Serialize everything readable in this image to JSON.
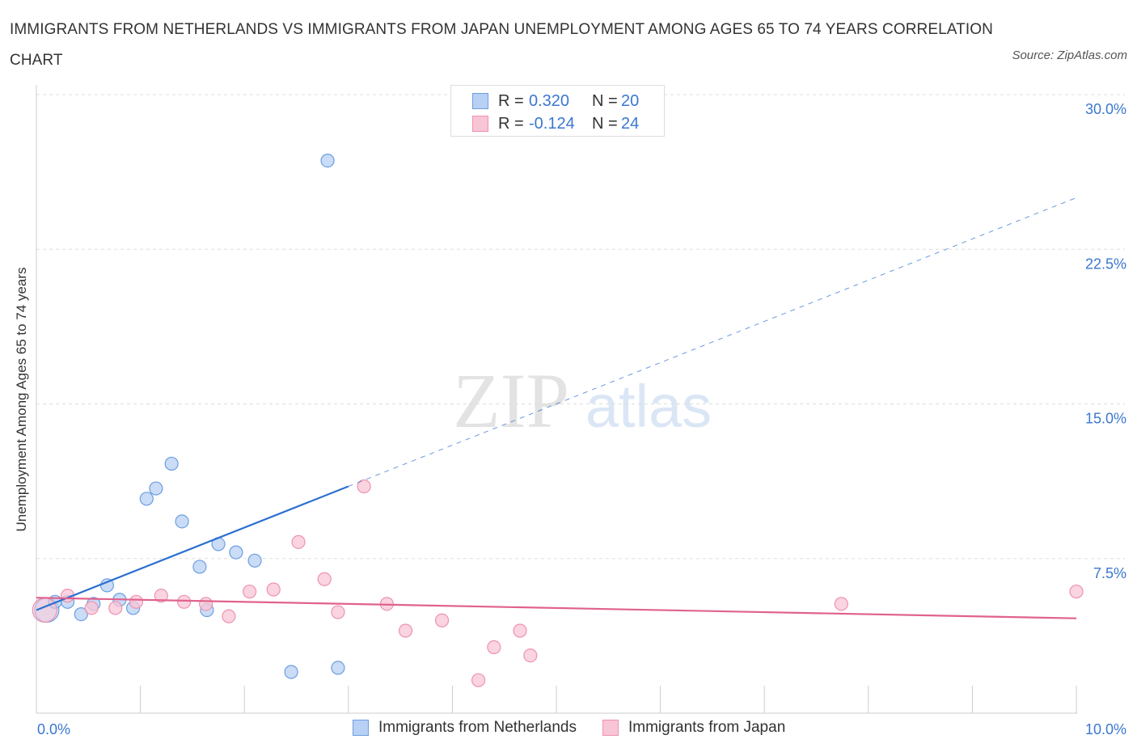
{
  "title": "IMMIGRANTS FROM NETHERLANDS VS IMMIGRANTS FROM JAPAN UNEMPLOYMENT AMONG AGES 65 TO 74 YEARS CORRELATION CHART",
  "source": "Source: ZipAtlas.com",
  "watermark": {
    "zip": "ZIP",
    "atlas": "atlas"
  },
  "legend": {
    "rows": [
      {
        "r_label": "R =",
        "r_value": "0.320",
        "n_label": "N =",
        "n_value": "20"
      },
      {
        "r_label": "R =",
        "r_value": "-0.124",
        "n_label": "N =",
        "n_value": "24"
      }
    ]
  },
  "colors": {
    "netherlands_fill": "#b8d0f3",
    "netherlands_stroke": "#6b9ee0",
    "netherlands_line": "#2a6fd0",
    "japan_fill": "#f8c5d5",
    "japan_stroke": "#ee92b0",
    "japan_line": "#e0628d",
    "tick_label": "#3a78d0",
    "grid": "#dddddd"
  },
  "chart_data": {
    "type": "scatter",
    "title": "IMMIGRANTS FROM NETHERLANDS VS IMMIGRANTS FROM JAPAN UNEMPLOYMENT AMONG AGES 65 TO 74 YEARS CORRELATION CHART",
    "xlabel": "",
    "ylabel": "Unemployment Among Ages 65 to 74 years",
    "xlim": [
      0,
      10
    ],
    "ylim": [
      0,
      30
    ],
    "x_tick_labels": [
      "0.0%",
      "10.0%"
    ],
    "y_ticks": [
      7.5,
      15,
      22.5,
      30
    ],
    "y_tick_labels": [
      "7.5%",
      "15.0%",
      "22.5%",
      "30.0%"
    ],
    "grid": true,
    "legend_position": "top-center",
    "series": [
      {
        "name": "Immigrants from Netherlands",
        "points": [
          {
            "x": 0.1,
            "y": 5.0,
            "big": true
          },
          {
            "x": 0.18,
            "y": 5.4
          },
          {
            "x": 0.3,
            "y": 5.4
          },
          {
            "x": 0.43,
            "y": 4.8
          },
          {
            "x": 0.55,
            "y": 5.3
          },
          {
            "x": 0.68,
            "y": 6.2
          },
          {
            "x": 0.8,
            "y": 5.5
          },
          {
            "x": 0.93,
            "y": 5.1
          },
          {
            "x": 1.06,
            "y": 10.4
          },
          {
            "x": 1.15,
            "y": 10.9
          },
          {
            "x": 1.3,
            "y": 12.1
          },
          {
            "x": 1.4,
            "y": 9.3
          },
          {
            "x": 1.57,
            "y": 7.1
          },
          {
            "x": 1.64,
            "y": 5.0
          },
          {
            "x": 1.75,
            "y": 8.2
          },
          {
            "x": 1.92,
            "y": 7.8
          },
          {
            "x": 2.1,
            "y": 7.4
          },
          {
            "x": 2.45,
            "y": 2.0
          },
          {
            "x": 2.8,
            "y": 26.8
          },
          {
            "x": 2.9,
            "y": 2.2
          }
        ],
        "trend": {
          "x0": 0.0,
          "y0": 5.0,
          "x1": 3.0,
          "y1": 11.0,
          "dash_to_x": 10.0,
          "dash_to_y": 25.0
        }
      },
      {
        "name": "Immigrants from Japan",
        "points": [
          {
            "x": 0.08,
            "y": 5.0,
            "big": true
          },
          {
            "x": 0.3,
            "y": 5.7
          },
          {
            "x": 0.53,
            "y": 5.1
          },
          {
            "x": 0.76,
            "y": 5.1
          },
          {
            "x": 0.96,
            "y": 5.4
          },
          {
            "x": 1.2,
            "y": 5.7
          },
          {
            "x": 1.42,
            "y": 5.4
          },
          {
            "x": 1.63,
            "y": 5.3
          },
          {
            "x": 1.85,
            "y": 4.7
          },
          {
            "x": 2.05,
            "y": 5.9
          },
          {
            "x": 2.28,
            "y": 6.0
          },
          {
            "x": 2.52,
            "y": 8.3
          },
          {
            "x": 2.77,
            "y": 6.5
          },
          {
            "x": 2.9,
            "y": 4.9
          },
          {
            "x": 3.15,
            "y": 11.0
          },
          {
            "x": 3.37,
            "y": 5.3
          },
          {
            "x": 3.55,
            "y": 4.0
          },
          {
            "x": 3.9,
            "y": 4.5
          },
          {
            "x": 4.25,
            "y": 1.6
          },
          {
            "x": 4.4,
            "y": 3.2
          },
          {
            "x": 4.65,
            "y": 4.0
          },
          {
            "x": 4.75,
            "y": 2.8
          },
          {
            "x": 7.74,
            "y": 5.3
          },
          {
            "x": 10.0,
            "y": 5.9
          }
        ],
        "trend": {
          "x0": 0.0,
          "y0": 5.6,
          "x1": 10.0,
          "y1": 4.6
        }
      }
    ]
  }
}
